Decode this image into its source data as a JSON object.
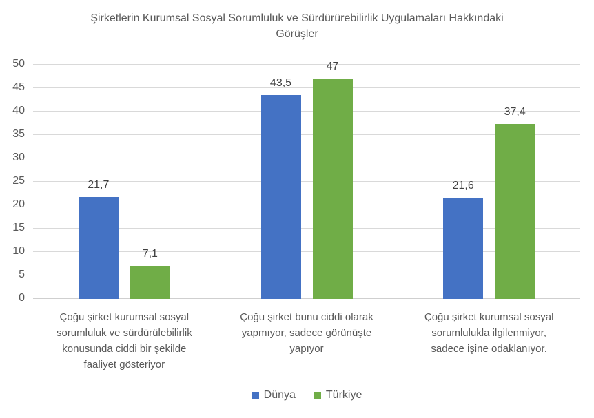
{
  "chart_data": {
    "type": "bar",
    "title": "Şirketlerin Kurumsal Sosyal Sorumluluk ve Sürdürürebilirlik Uygulamaları Hakkındaki Görüşler",
    "title_lines": [
      "Şirketlerin Kurumsal Sosyal Sorumluluk ve Sürdürürebilirlik Uygulamaları Hakkındaki",
      "Görüşler"
    ],
    "categories": [
      "Çoğu şirket kurumsal sosyal sorumluluk ve sürdürülebilirlik konusunda ciddi bir şekilde faaliyet gösteriyor",
      "Çoğu şirket bunu ciddi olarak yapmıyor, sadece görünüşte yapıyor",
      "Çoğu şirket kurumsal sosyal sorumlulukla ilgilenmiyor, sadece işine odaklanıyor."
    ],
    "category_lines": [
      [
        "Çoğu şirket kurumsal sosyal",
        "sorumluluk ve sürdürülebilirlik",
        "konusunda ciddi bir şekilde",
        "faaliyet gösteriyor"
      ],
      [
        "Çoğu şirket bunu ciddi olarak",
        "yapmıyor, sadece görünüşte",
        "yapıyor"
      ],
      [
        "Çoğu şirket kurumsal sosyal",
        "sorumlulukla ilgilenmiyor,",
        "sadece işine odaklanıyor."
      ]
    ],
    "series": [
      {
        "name": "Dünya",
        "color": "#4472C4",
        "values": [
          21.7,
          43.5,
          21.6
        ],
        "value_labels": [
          "21,7",
          "43,5",
          "21,6"
        ]
      },
      {
        "name": "Türkiye",
        "color": "#70AD47",
        "values": [
          7.1,
          47,
          37.4
        ],
        "value_labels": [
          "7,1",
          "47",
          "37,4"
        ]
      }
    ],
    "y_ticks": [
      0,
      5,
      10,
      15,
      20,
      25,
      30,
      35,
      40,
      45,
      50
    ],
    "ylim": [
      0,
      50
    ],
    "grid": true,
    "legend_position": "bottom",
    "colors": {
      "axis_text": "#595959",
      "value_label": "#404040",
      "gridline": "#D9D9D9",
      "title_text": "#595959",
      "background": "#FFFFFF"
    }
  }
}
